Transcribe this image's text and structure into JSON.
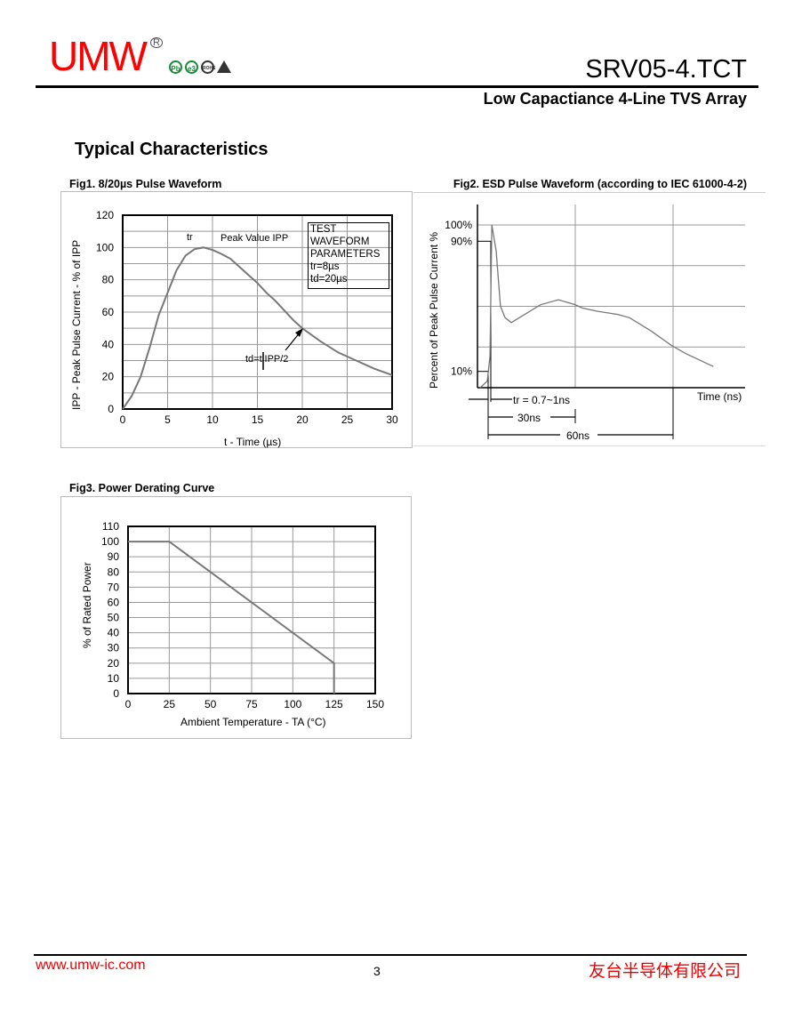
{
  "header": {
    "logo": "UMW",
    "registered": "R",
    "badges": [
      "Pb",
      "e3",
      "ROHS",
      "ESD"
    ],
    "part_number": "SRV05-4.TCT",
    "subtitle": "Low Capactiance 4-Line TVS Array"
  },
  "section_title": "Typical Characteristics",
  "colors": {
    "logo": "#ff0000",
    "curve": "#777777",
    "grid": "#999999"
  },
  "chart_data": [
    {
      "id": "fig1",
      "type": "line",
      "title": "Fig1.   8/20µs Pulse Waveform",
      "xlabel": "t - Time (µs)",
      "ylabel": "IPP - Peak Pulse Current - % of IPP",
      "xlim": [
        0,
        30
      ],
      "ylim": [
        0,
        120
      ],
      "xticks": [
        0,
        5,
        10,
        15,
        20,
        25,
        30
      ],
      "yticks": [
        0,
        20,
        40,
        60,
        80,
        100,
        120
      ],
      "grid": true,
      "x": [
        0,
        1,
        2,
        3,
        4,
        5,
        6,
        7,
        8,
        9,
        10,
        11,
        12,
        13,
        14,
        15,
        16,
        17,
        18,
        19,
        20,
        22,
        24,
        26,
        28,
        30
      ],
      "y": [
        0,
        8,
        20,
        38,
        58,
        72,
        86,
        95,
        99,
        100,
        98.5,
        96,
        93,
        88,
        83,
        78,
        72,
        67,
        61,
        55,
        50,
        42,
        35,
        30,
        25,
        21
      ],
      "annotations": {
        "tr": "tr",
        "peak": "Peak Value IPP",
        "td": "td=t|IPP/2",
        "box": [
          "TEST",
          "WAVEFORM",
          "PARAMETERS",
          "tr=8µs",
          "td=20µs"
        ]
      }
    },
    {
      "id": "fig2",
      "type": "line",
      "title": "Fig2. ESD Pulse Waveform (according to IEC 61000-4-2)",
      "xlabel": "Time (ns)",
      "ylabel": "Percent of Peak Pulse Current %",
      "ylim": [
        0,
        100
      ],
      "yticks": [
        "100%",
        "90%",
        "10%"
      ],
      "grid": true,
      "x": [
        -2.6,
        -0.3,
        0.6,
        1.2,
        2.6,
        4,
        5.5,
        7.5,
        17,
        22.8,
        28.2,
        30.5,
        35.3,
        42,
        45.8,
        52.7,
        59.4,
        64,
        73
      ],
      "y": [
        0,
        4,
        19,
        100,
        84,
        50,
        43,
        40,
        51,
        54,
        51,
        49,
        47,
        45,
        43,
        35,
        26,
        21,
        13
      ],
      "annotations": {
        "tr": "tr = 0.7~1ns",
        "t30": "30ns",
        "t60": "60ns"
      }
    },
    {
      "id": "fig3",
      "type": "line",
      "title": "Fig3.   Power Derating Curve",
      "xlabel": "Ambient Temperature  - TA (°C)",
      "ylabel": "% of Rated Power",
      "xlim": [
        0,
        150
      ],
      "ylim": [
        0,
        110
      ],
      "xticks": [
        0,
        25,
        50,
        75,
        100,
        125,
        150
      ],
      "yticks": [
        0,
        10,
        20,
        30,
        40,
        50,
        60,
        70,
        80,
        90,
        100,
        110
      ],
      "grid": true,
      "x": [
        0,
        25,
        125,
        125
      ],
      "y": [
        100,
        100,
        20,
        0
      ]
    }
  ],
  "footer": {
    "url": "www.umw-ic.com",
    "page": "3",
    "company": "友台半导体有限公司"
  }
}
